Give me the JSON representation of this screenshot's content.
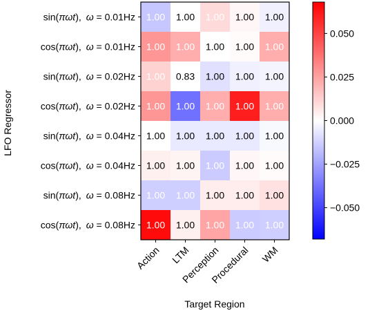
{
  "chart_data": {
    "type": "heatmap",
    "xlabel": "Target Region",
    "ylabel": "LFO Regressor",
    "columns": [
      "Action",
      "LTM",
      "Perception",
      "Procedural",
      "WM"
    ],
    "rows": [
      {
        "func": "sin",
        "freq": "0.01Hz"
      },
      {
        "func": "cos",
        "freq": "0.01Hz"
      },
      {
        "func": "sin",
        "freq": "0.02Hz"
      },
      {
        "func": "cos",
        "freq": "0.02Hz"
      },
      {
        "func": "sin",
        "freq": "0.04Hz"
      },
      {
        "func": "cos",
        "freq": "0.04Hz"
      },
      {
        "func": "sin",
        "freq": "0.08Hz"
      },
      {
        "func": "cos",
        "freq": "0.08Hz"
      }
    ],
    "annotations": [
      [
        "1.00",
        "1.00",
        "1.00",
        "1.00",
        "1.00"
      ],
      [
        "1.00",
        "1.00",
        "1.00",
        "1.00",
        "1.00"
      ],
      [
        "1.00",
        "0.83",
        "1.00",
        "1.00",
        "1.00"
      ],
      [
        "1.00",
        "1.00",
        "1.00",
        "1.00",
        "1.00"
      ],
      [
        "1.00",
        "1.00",
        "1.00",
        "1.00",
        "1.00"
      ],
      [
        "1.00",
        "1.00",
        "1.00",
        "1.00",
        "1.00"
      ],
      [
        "1.00",
        "1.00",
        "1.00",
        "1.00",
        "1.00"
      ],
      [
        "1.00",
        "1.00",
        "1.00",
        "1.00",
        "1.00"
      ]
    ],
    "values": [
      [
        -0.015,
        0.0,
        0.01,
        0.002,
        -0.004
      ],
      [
        0.028,
        0.022,
        0.0,
        0.001,
        0.022
      ],
      [
        0.012,
        0.0,
        -0.008,
        -0.004,
        -0.003
      ],
      [
        0.028,
        -0.038,
        0.022,
        0.06,
        0.022
      ],
      [
        0.0,
        -0.006,
        -0.006,
        -0.006,
        -0.002
      ],
      [
        0.004,
        0.003,
        -0.014,
        0.002,
        0.001
      ],
      [
        -0.013,
        -0.013,
        0.005,
        0.005,
        0.008
      ],
      [
        0.065,
        0.004,
        0.024,
        -0.014,
        -0.013
      ]
    ],
    "colorbar": {
      "range": [
        -0.068,
        0.068
      ],
      "ticks": [
        "0.050",
        "0.025",
        "0.000",
        "−0.025",
        "−0.050"
      ],
      "tick_values": [
        0.05,
        0.025,
        0.0,
        -0.025,
        -0.05
      ],
      "colormap": "bwr"
    }
  }
}
